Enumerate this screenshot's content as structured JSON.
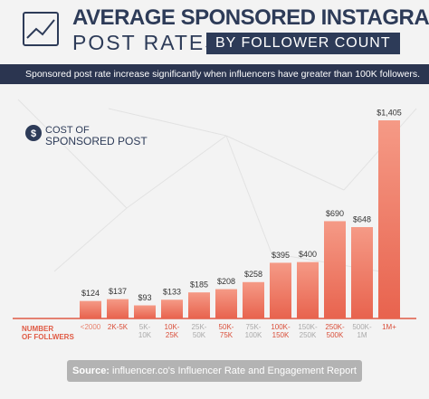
{
  "chart_data": {
    "type": "bar",
    "title": "AVERAGE SPONSORED INSTAGRAM",
    "title_line2": "POST RATES",
    "title_tag": "BY FOLLOWER COUNT",
    "subtitle": "Sponsored post rate increase significantly when influencers have greater than 100K followers.",
    "legend": [
      "COST OF",
      "SPONSORED POST"
    ],
    "x_label": [
      "NUMBER",
      "OF FOLLWERS"
    ],
    "source_label": "Source:",
    "source": "influencer.co's Influencer Rate and Engagement Report",
    "categories": [
      "<2000",
      "2K-5K",
      "5K-10K",
      "10K-25K",
      "25K-50K",
      "50K-75K",
      "75K-100K",
      "100K-150K",
      "150K-250K",
      "250K-500K",
      "500K-1M",
      "1M+"
    ],
    "category_colors": [
      "#e8806c",
      "#d94f3a",
      "#a9a9a9",
      "#d94f3a",
      "#a9a9a9",
      "#d94f3a",
      "#a9a9a9",
      "#d94f3a",
      "#a9a9a9",
      "#d94f3a",
      "#a9a9a9",
      "#d94f3a"
    ],
    "values": [
      124,
      137,
      93,
      133,
      185,
      208,
      258,
      395,
      400,
      690,
      648,
      1405
    ],
    "value_labels": [
      "$124",
      "$137",
      "$93",
      "$133",
      "$185",
      "$208",
      "$258",
      "$395",
      "$400",
      "$690",
      "$648",
      "$1,405"
    ],
    "color": "#f07f6a",
    "ylim": [
      0,
      1450
    ]
  }
}
